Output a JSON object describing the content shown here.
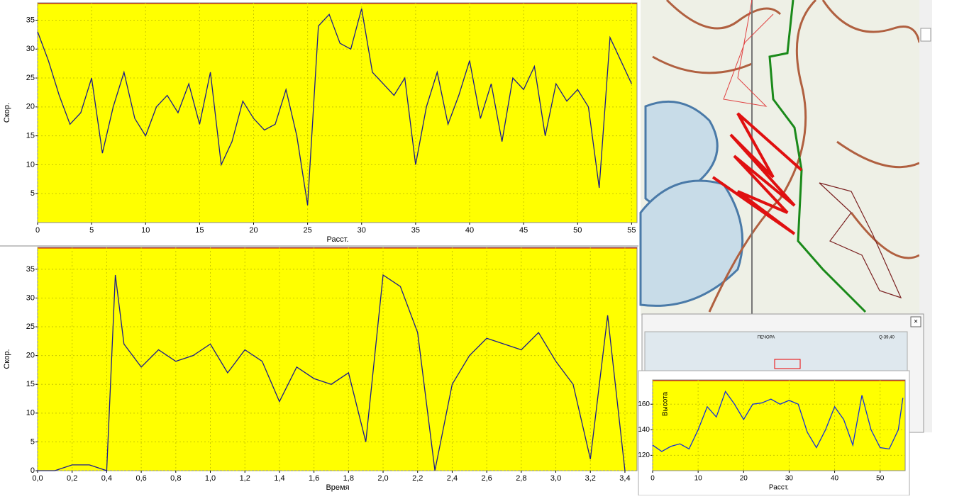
{
  "chart_data": [
    {
      "type": "line",
      "x_label": "Расст.",
      "y_label": "Скор.",
      "xlim": [
        0,
        55.5
      ],
      "ylim": [
        0,
        38
      ],
      "grid": true,
      "xticks": [
        0,
        5,
        10,
        15,
        20,
        25,
        30,
        35,
        40,
        45,
        50,
        55
      ],
      "yticks": [
        5,
        10,
        15,
        20,
        25,
        30,
        35
      ],
      "series": [
        {
          "color": "#1c1c8a",
          "x": [
            0,
            1,
            2,
            3,
            4,
            5,
            6,
            7,
            8,
            9,
            10,
            11,
            12,
            13,
            14,
            15,
            16,
            17,
            18,
            19,
            20,
            21,
            22,
            23,
            24,
            25,
            26,
            27,
            28,
            29,
            30,
            31,
            32,
            33,
            34,
            35,
            36,
            37,
            38,
            39,
            40,
            41,
            42,
            43,
            44,
            45,
            46,
            47,
            48,
            49,
            50,
            51,
            52,
            53,
            54,
            55
          ],
          "values": [
            33,
            28,
            22,
            17,
            19,
            25,
            12,
            20,
            26,
            18,
            15,
            20,
            22,
            19,
            24,
            17,
            26,
            10,
            14,
            21,
            18,
            16,
            17,
            23,
            15,
            3,
            34,
            36,
            31,
            30,
            37,
            26,
            24,
            22,
            25,
            10,
            20,
            26,
            17,
            22,
            28,
            18,
            24,
            14,
            25,
            23,
            27,
            15,
            24,
            21,
            23,
            20,
            6,
            32,
            28,
            24
          ]
        }
      ]
    },
    {
      "type": "line",
      "x_label": "Время",
      "y_label": "Скор.",
      "xlim": [
        0,
        3.47
      ],
      "ylim": [
        0,
        38.8
      ],
      "grid": true,
      "xticks": [
        {
          "value": 0,
          "label": "0,0"
        },
        {
          "value": 0.2,
          "label": "0,2"
        },
        {
          "value": 0.4,
          "label": "0,4"
        },
        {
          "value": 0.6,
          "label": "0,6"
        },
        {
          "value": 0.8,
          "label": "0,8"
        },
        {
          "value": 1.0,
          "label": "1,0"
        },
        {
          "value": 1.2,
          "label": "1,2"
        },
        {
          "value": 1.4,
          "label": "1,4"
        },
        {
          "value": 1.6,
          "label": "1,6"
        },
        {
          "value": 1.8,
          "label": "1,8"
        },
        {
          "value": 2.0,
          "label": "2,0"
        },
        {
          "value": 2.2,
          "label": "2,2"
        },
        {
          "value": 2.4,
          "label": "2,4"
        },
        {
          "value": 2.6,
          "label": "2,6"
        },
        {
          "value": 2.8,
          "label": "2,8"
        },
        {
          "value": 3.0,
          "label": "3,0"
        },
        {
          "value": 3.2,
          "label": "3,2"
        },
        {
          "value": 3.4,
          "label": "3,4"
        }
      ],
      "yticks": [
        0,
        5,
        10,
        15,
        20,
        25,
        30,
        35
      ],
      "series": [
        {
          "color": "#1c1c8a",
          "x": [
            0,
            0.1,
            0.2,
            0.3,
            0.4,
            0.45,
            0.5,
            0.6,
            0.7,
            0.8,
            0.9,
            1.0,
            1.1,
            1.2,
            1.3,
            1.4,
            1.5,
            1.6,
            1.7,
            1.8,
            1.9,
            2.0,
            2.1,
            2.2,
            2.3,
            2.4,
            2.5,
            2.6,
            2.7,
            2.8,
            2.9,
            3.0,
            3.1,
            3.2,
            3.3,
            3.4
          ],
          "values": [
            0,
            0,
            1,
            1,
            0,
            34,
            22,
            18,
            21,
            19,
            20,
            22,
            17,
            21,
            19,
            12,
            18,
            16,
            15,
            17,
            5,
            34,
            32,
            24,
            0,
            15,
            20,
            23,
            22,
            21,
            24,
            19,
            15,
            2,
            27,
            0
          ]
        }
      ]
    },
    {
      "type": "line",
      "x_label": "Расст.",
      "y_label": "Высота",
      "xlim": [
        0,
        55.5
      ],
      "ylim": [
        108,
        179
      ],
      "grid": true,
      "xticks": [
        0,
        10,
        20,
        30,
        40,
        50
      ],
      "yticks": [
        120,
        140,
        160
      ],
      "series": [
        {
          "color": "#1530d8",
          "x": [
            0,
            2,
            4,
            6,
            8,
            10,
            12,
            14,
            16,
            18,
            20,
            22,
            24,
            26,
            28,
            30,
            32,
            34,
            36,
            38,
            40,
            42,
            44,
            46,
            48,
            50,
            52,
            54,
            55
          ],
          "values": [
            128,
            123,
            127,
            129,
            125,
            140,
            158,
            150,
            170,
            160,
            148,
            160,
            161,
            164,
            160,
            163,
            160,
            138,
            126,
            140,
            158,
            148,
            128,
            167,
            140,
            126,
            125,
            140,
            165
          ]
        }
      ]
    }
  ],
  "map": {
    "sheet_title": "ПЕЧОРА",
    "sheet_code": "Q-39,40"
  }
}
